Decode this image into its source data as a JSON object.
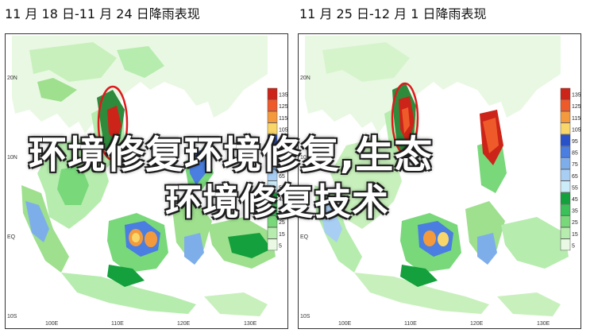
{
  "titles": {
    "left": "11 月 18 日-11 月 24 日降雨表现",
    "right": "11 月 25 日-12 月 1 日降雨表现"
  },
  "map": {
    "lat_labels": [
      "20N",
      "10N",
      "EQ",
      "10S"
    ],
    "lon_labels": [
      "100E",
      "110E",
      "120E",
      "130E"
    ]
  },
  "legend": {
    "values": [
      "135",
      "125",
      "115",
      "105",
      "95",
      "85",
      "75",
      "65",
      "55",
      "45",
      "35",
      "25",
      "15",
      "5"
    ],
    "colors": [
      "#cc2418",
      "#ee5a2a",
      "#f49a3c",
      "#f9d66a",
      "#2a52c8",
      "#4a7ee0",
      "#7eaeea",
      "#a8cef4",
      "#ccebf8",
      "#14a03c",
      "#3cc05a",
      "#78d87a",
      "#b6ecae",
      "#eaf9e4"
    ]
  },
  "overlay": {
    "line1": "环境修复环境修复,生态",
    "line2": "环境修复技术"
  }
}
